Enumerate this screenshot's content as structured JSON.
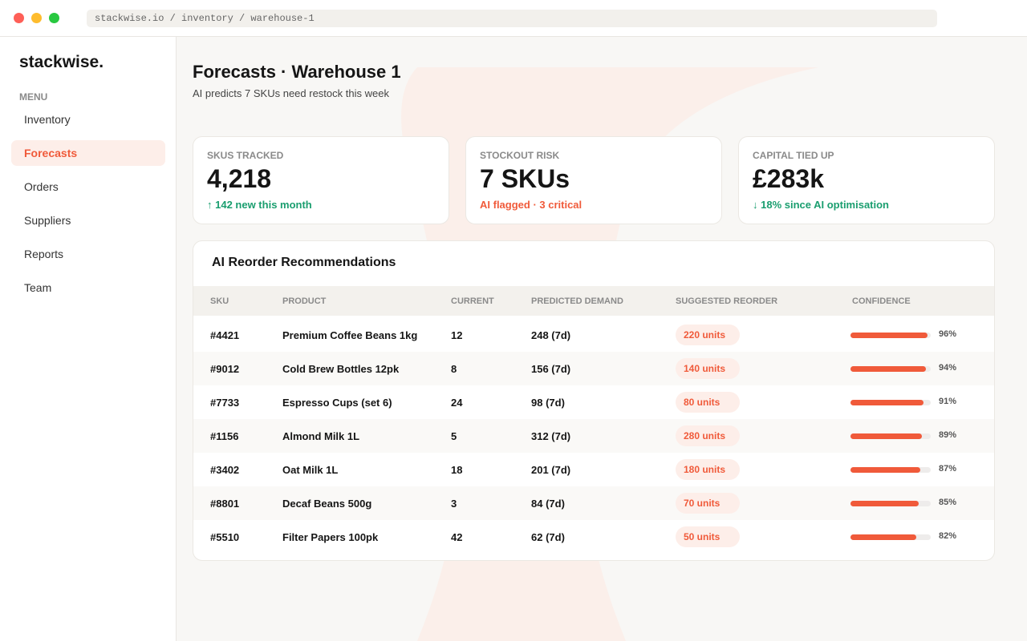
{
  "browser": {
    "url": "stackwise.io / inventory / warehouse-1"
  },
  "sidebar": {
    "brand": "stackwise.",
    "menu_label": "MENU",
    "items": [
      "Inventory",
      "Forecasts",
      "Orders",
      "Suppliers",
      "Reports",
      "Team"
    ],
    "active": 1
  },
  "header": {
    "title": "Forecasts · Warehouse 1",
    "subtitle": "AI predicts 7 SKUs need restock this week"
  },
  "stats": [
    {
      "label": "SKUS TRACKED",
      "value": "4,218",
      "note": "↑ 142 new this month",
      "note_color": "#1a9e6f"
    },
    {
      "label": "STOCKOUT RISK",
      "value": "7 SKUs",
      "note": "AI flagged · 3 critical",
      "note_color": "#f05a3a"
    },
    {
      "label": "CAPITAL TIED UP",
      "value": "£283k",
      "note": "↓ 18% since AI optimisation",
      "note_color": "#1a9e6f"
    }
  ],
  "table": {
    "title": "AI Reorder Recommendations",
    "columns": [
      "SKU",
      "PRODUCT",
      "CURRENT",
      "PREDICTED DEMAND",
      "SUGGESTED REORDER",
      "CONFIDENCE"
    ],
    "rows": [
      [
        "#4421",
        "Premium Coffee Beans 1kg",
        "12",
        "248 (7d)",
        "220 units",
        {
          "value": 96,
          "label": "96%"
        }
      ],
      [
        "#9012",
        "Cold Brew Bottles 12pk",
        "8",
        "156 (7d)",
        "140 units",
        {
          "value": 94,
          "label": "94%"
        }
      ],
      [
        "#7733",
        "Espresso Cups (set 6)",
        "24",
        "98 (7d)",
        "80 units",
        {
          "value": 91,
          "label": "91%"
        }
      ],
      [
        "#1156",
        "Almond Milk 1L",
        "5",
        "312 (7d)",
        "280 units",
        {
          "value": 89,
          "label": "89%"
        }
      ],
      [
        "#3402",
        "Oat Milk 1L",
        "18",
        "201 (7d)",
        "180 units",
        {
          "value": 87,
          "label": "87%"
        }
      ],
      [
        "#8801",
        "Decaf Beans 500g",
        "3",
        "84 (7d)",
        "70 units",
        {
          "value": 85,
          "label": "85%"
        }
      ],
      [
        "#5510",
        "Filter Papers 100pk",
        "42",
        "62 (7d)",
        "50 units",
        {
          "value": 82,
          "label": "82%"
        }
      ]
    ]
  }
}
